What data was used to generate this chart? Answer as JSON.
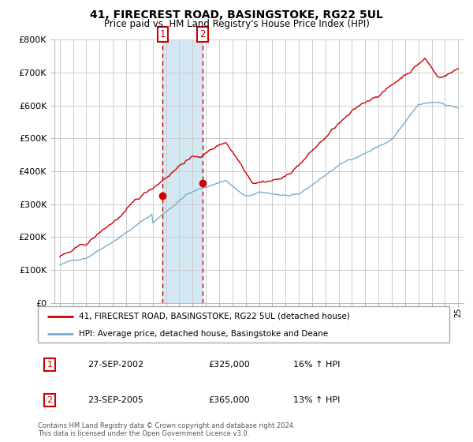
{
  "title": "41, FIRECREST ROAD, BASINGSTOKE, RG22 5UL",
  "subtitle": "Price paid vs. HM Land Registry's House Price Index (HPI)",
  "legend_line1": "41, FIRECREST ROAD, BASINGSTOKE, RG22 5UL (detached house)",
  "legend_line2": "HPI: Average price, detached house, Basingstoke and Deane",
  "transaction1_date": "27-SEP-2002",
  "transaction1_price": "£325,000",
  "transaction1_hpi": "16% ↑ HPI",
  "transaction1_year": 2002.75,
  "transaction1_value": 325000,
  "transaction2_date": "23-SEP-2005",
  "transaction2_price": "£365,000",
  "transaction2_hpi": "13% ↑ HPI",
  "transaction2_year": 2005.75,
  "transaction2_value": 365000,
  "footer": "Contains HM Land Registry data © Crown copyright and database right 2024.\nThis data is licensed under the Open Government Licence v3.0.",
  "red_color": "#cc0000",
  "blue_color": "#7aadcf",
  "shade_color": "#cce5f0",
  "ylim": [
    0,
    800000
  ],
  "yticks": [
    0,
    100000,
    200000,
    300000,
    400000,
    500000,
    600000,
    700000,
    800000
  ],
  "ytick_labels": [
    "£0",
    "£100K",
    "£200K",
    "£300K",
    "£400K",
    "£500K",
    "£600K",
    "£700K",
    "£800K"
  ],
  "xstart": 1995,
  "xend": 2025
}
